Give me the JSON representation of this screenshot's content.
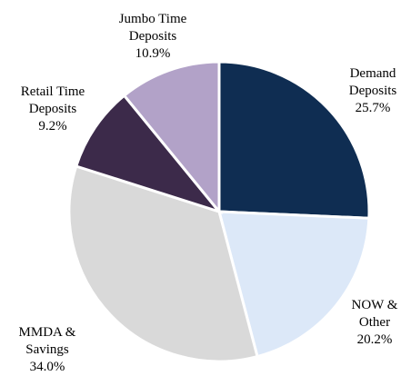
{
  "chart_data": {
    "type": "pie",
    "categories": [
      "Demand Deposits",
      "NOW & Other",
      "MMDA & Savings",
      "Retail Time Deposits",
      "Jumbo Time Deposits"
    ],
    "values": [
      25.7,
      20.2,
      34.0,
      9.2,
      10.9
    ],
    "value_labels": [
      "25.7%",
      "20.2%",
      "34.0%",
      "9.2%",
      "10.9%"
    ],
    "colors": [
      "#0f2d52",
      "#dce8f8",
      "#d9d9d9",
      "#3c2a4a",
      "#b2a2c8"
    ]
  }
}
